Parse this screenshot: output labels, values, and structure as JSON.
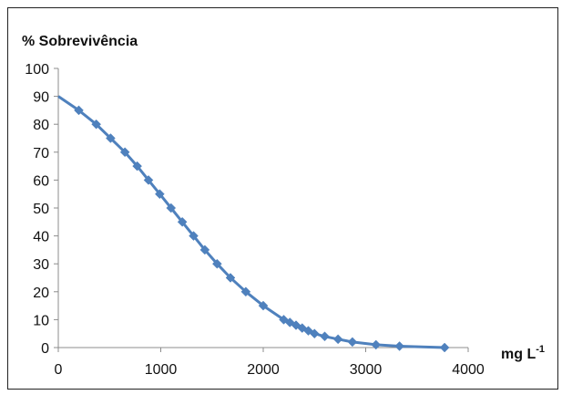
{
  "chart_data": {
    "type": "line",
    "ylabel": "% Sobrevivência",
    "xlabel": "mg L",
    "xlabel_sup": "-1",
    "xlim": [
      0,
      4000
    ],
    "ylim": [
      0,
      100
    ],
    "xticks": [
      "0",
      "1000",
      "2000",
      "3000",
      "4000"
    ],
    "yticks": [
      "0",
      "10",
      "20",
      "30",
      "40",
      "50",
      "60",
      "70",
      "80",
      "90",
      "100"
    ],
    "series_color": "#4f81bd",
    "series": [
      {
        "points": [
          [
            200,
            85
          ],
          [
            370,
            80
          ],
          [
            510,
            75
          ],
          [
            650,
            70
          ],
          [
            770,
            65
          ],
          [
            880,
            60
          ],
          [
            990,
            55
          ],
          [
            1100,
            50
          ],
          [
            1210,
            45
          ],
          [
            1320,
            40
          ],
          [
            1430,
            35
          ],
          [
            1550,
            30
          ],
          [
            1680,
            25
          ],
          [
            1830,
            20
          ],
          [
            2000,
            15
          ],
          [
            2200,
            10
          ],
          [
            2260,
            9
          ],
          [
            2320,
            8
          ],
          [
            2380,
            7
          ],
          [
            2440,
            6
          ],
          [
            2500,
            5
          ],
          [
            2600,
            4
          ],
          [
            2730,
            3
          ],
          [
            2870,
            2
          ],
          [
            3100,
            1
          ],
          [
            3330,
            0.5
          ],
          [
            3770,
            0
          ]
        ],
        "curve_start": [
          0,
          90
        ]
      }
    ]
  }
}
